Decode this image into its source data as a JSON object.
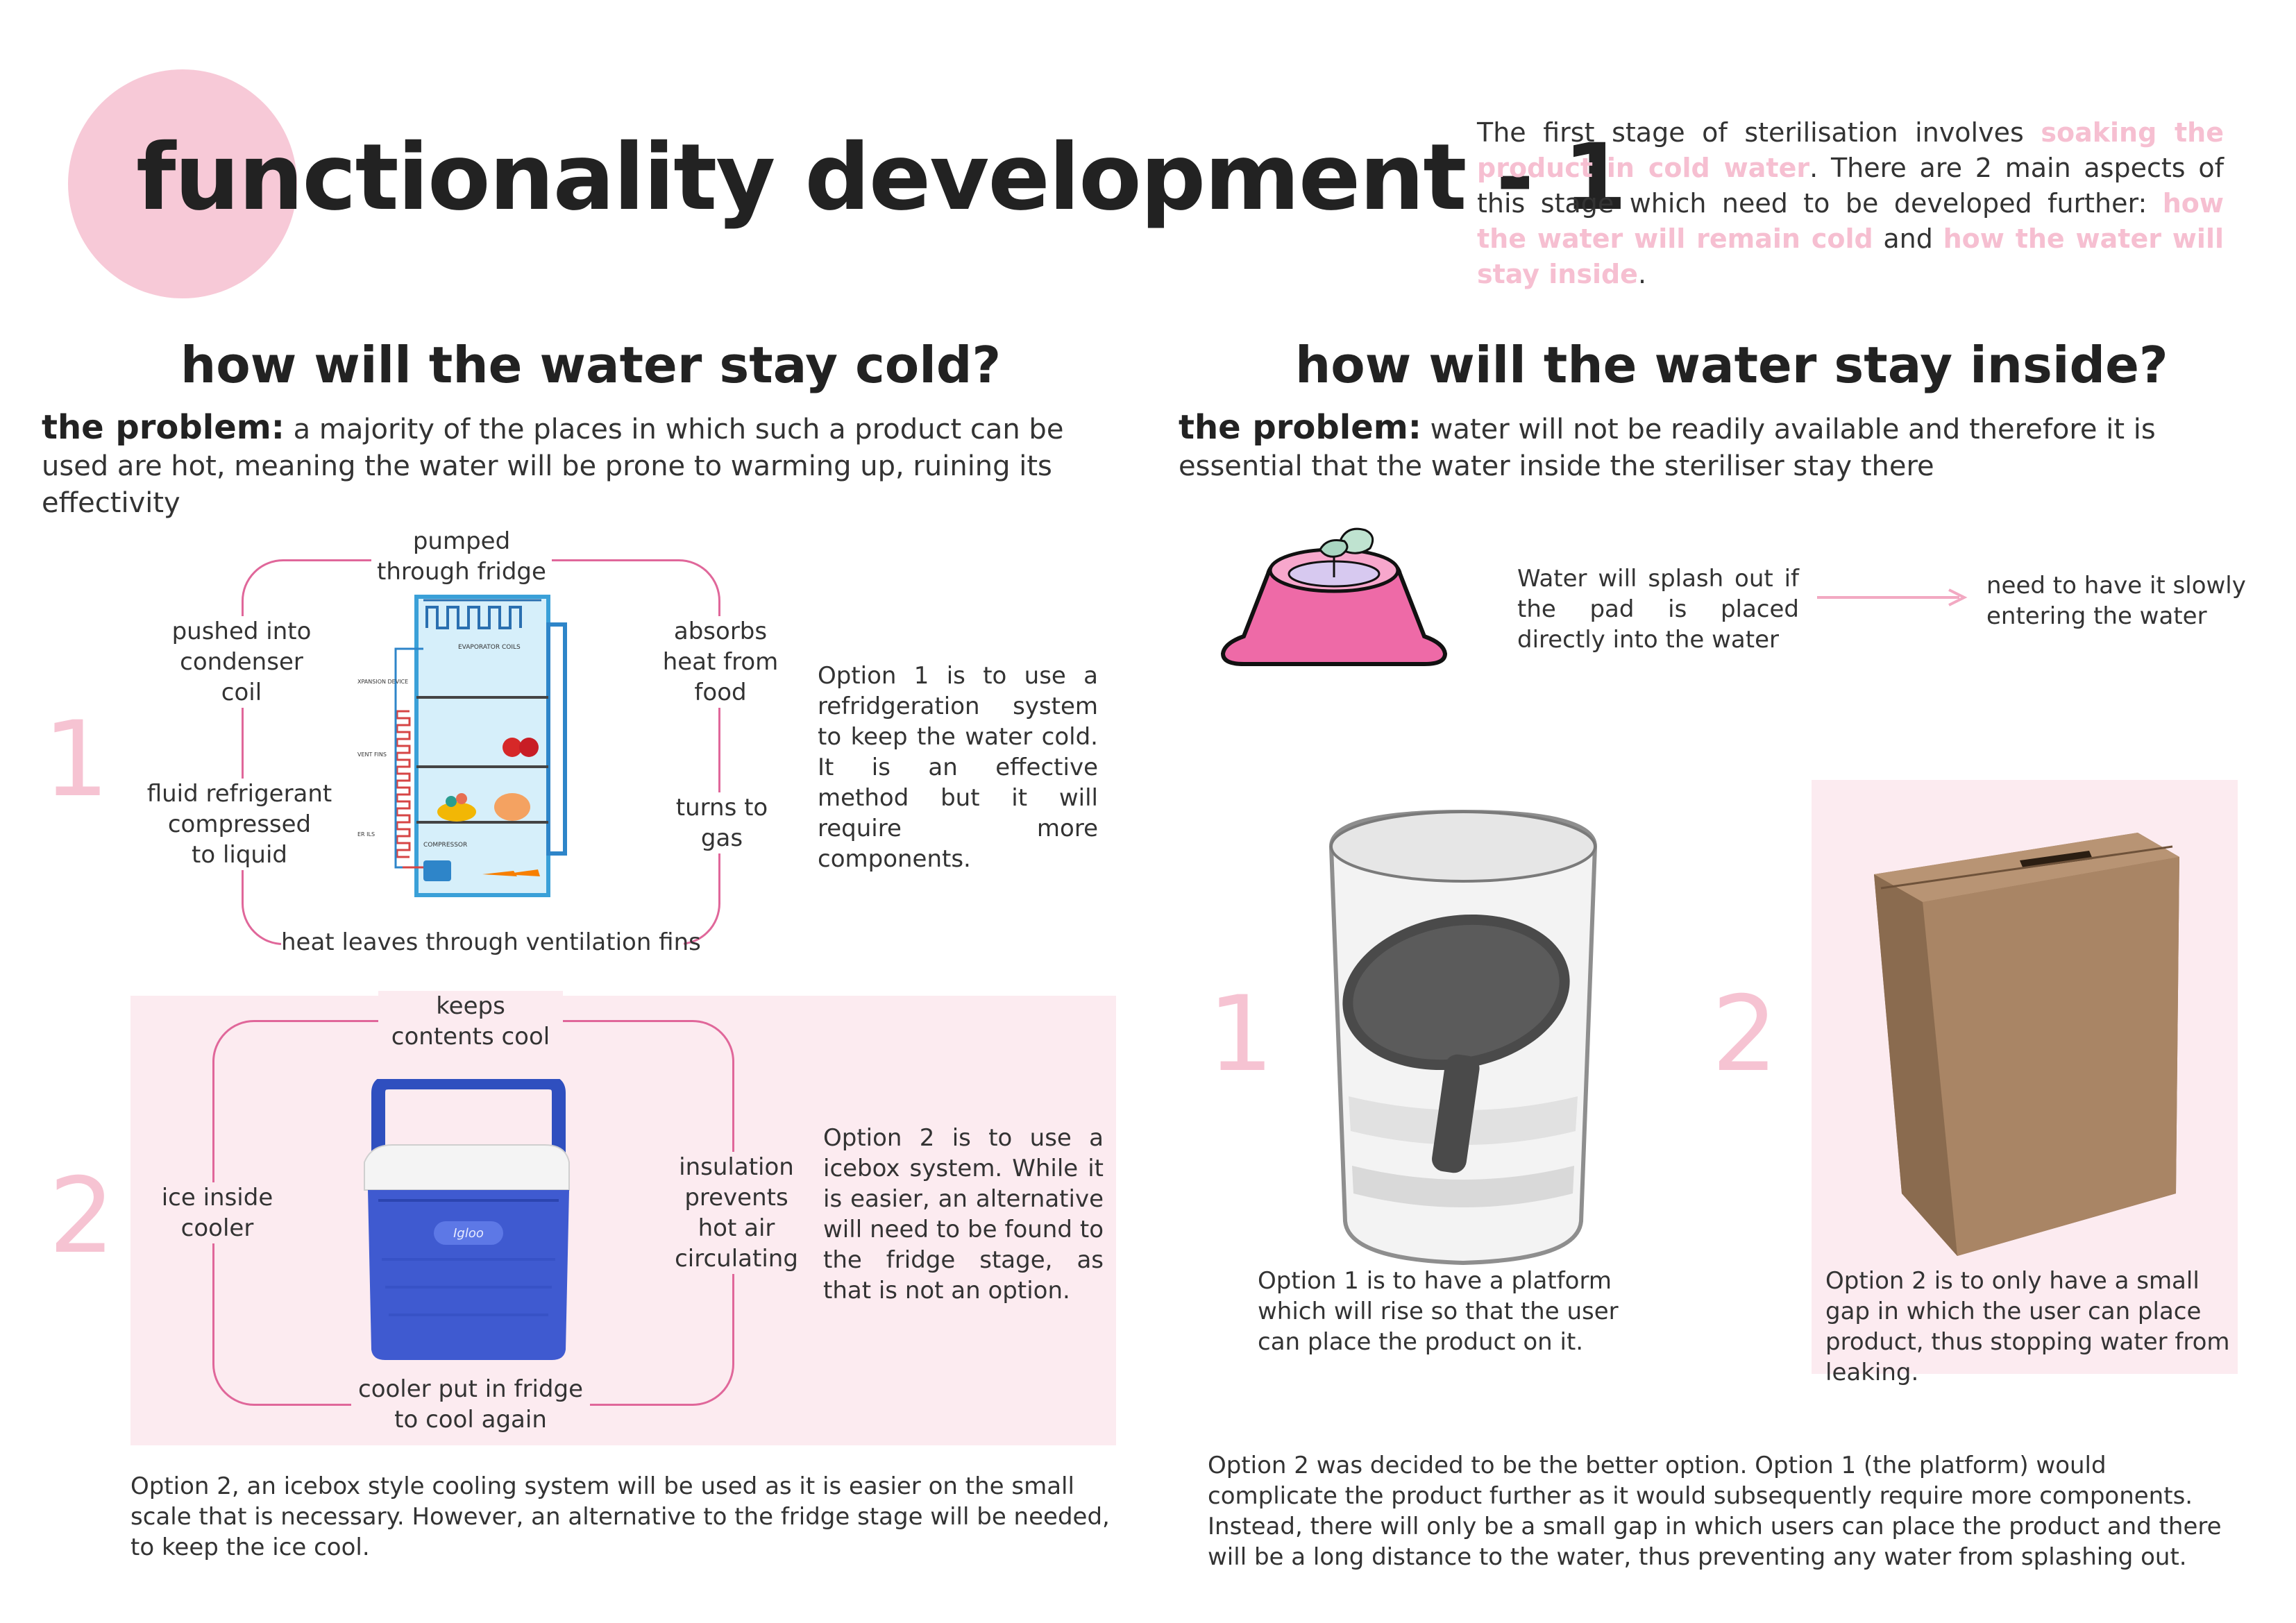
{
  "header": {
    "title": "functionality development - 1",
    "intro": [
      {
        "text": "The first stage of sterilisation involves ",
        "hl": false
      },
      {
        "text": "soaking the product in cold water",
        "hl": true
      },
      {
        "text": ". There are 2 main aspects of this stage which need to be developed further: ",
        "hl": false
      },
      {
        "text": "how the water will remain cold",
        "hl": true
      },
      {
        "text": " and ",
        "hl": false
      },
      {
        "text": "how the water will stay inside",
        "hl": true
      },
      {
        "text": ".",
        "hl": false
      }
    ]
  },
  "cold": {
    "heading": "how will the water stay cold?",
    "problem_label": "the problem:",
    "problem_text": " a majority of the places in which such a product can be used are hot, meaning the water will be prone to warming up, ruining its effectivity",
    "option1": {
      "number": "1",
      "labels": {
        "top": "pumped\nthrough fridge",
        "left_top": "pushed into\ncondenser\ncoil",
        "left_bottom": "fluid refrigerant\ncompressed\nto liquid",
        "right_top": "absorbs\nheat from\nfood",
        "right_bottom": "turns to\ngas",
        "bottom": "heat leaves through ventilation fins"
      },
      "fridge_labels": {
        "evaporator": "EVAPORATOR COILS",
        "expansion": "XPANSION DEVICE",
        "vent": "VENT FINS",
        "coils": "ER ILS",
        "compressor": "COMPRESSOR"
      },
      "description": "Option 1 is to use a refridgeration system to keep the water cold. It is an effective method but it will require more components."
    },
    "option2": {
      "number": "2",
      "labels": {
        "top": "keeps\ncontents cool",
        "left": "ice inside\ncooler",
        "right": "insulation\nprevents\nhot air\ncirculating",
        "bottom": "cooler put in fridge\nto cool again"
      },
      "cooler_brand": "Igloo",
      "description": "Option 2 is to use a icebox system. While it is easier, an alternative will need to be found to the fridge stage, as that is not an option."
    },
    "conclusion": "Option 2, an icebox style cooling system will be used as it is easier on the small scale that is necessary. However, an alternative to the fridge stage will be needed, to keep the ice cool."
  },
  "inside": {
    "heading": "how will the water stay inside?",
    "problem_label": "the problem:",
    "problem_text": " water will not be readily available and therefore it is essential that the water inside the steriliser stay there",
    "splash_note": "Water will splash out if the pad is placed directly into the water",
    "need_note": "need to have it slowly entering the water",
    "option1": {
      "number": "1",
      "caption": "Option 1 is to have a platform which will rise so that the user can place the product on it."
    },
    "option2": {
      "number": "2",
      "caption": "Option 2 is to only have a small gap in which the user can place product, thus stopping water from leaking."
    },
    "conclusion": "Option 2 was decided to be the better option. Option 1 (the platform) would complicate the product further as it would subsequently require more components. Instead, there will only be a small gap in which users can place the product and there will be a long distance to the water, thus preventing any water from splashing out."
  },
  "colors": {
    "accent_pink": "#f6bfd1",
    "loop_pink": "#e0679a",
    "panel_pink": "#fcebf0"
  }
}
